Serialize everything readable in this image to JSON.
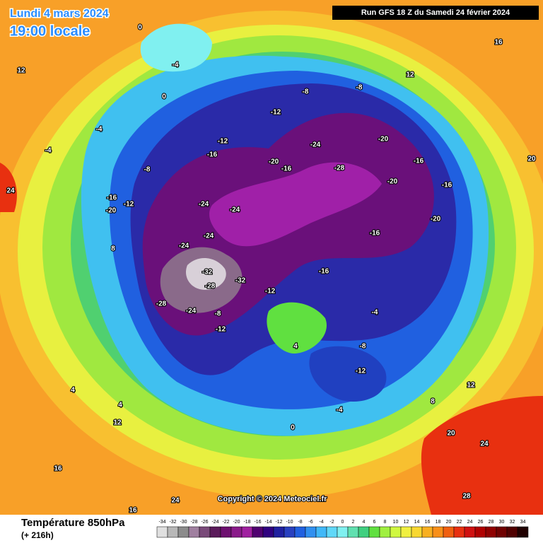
{
  "header": {
    "date": "Lundi 4 mars 2024",
    "time": "19:00 locale",
    "run": "Run GFS 18 Z du Samedi 24 février 2024"
  },
  "copyright": "Copyright © 2024 Meteociel.fr",
  "footer": {
    "title": "Température 850hPa",
    "lead": "(+ 216h)"
  },
  "contour_labels": [
    -4,
    0,
    -8,
    -8,
    -12,
    -20,
    -16,
    -24,
    -28,
    -20,
    -16,
    -20,
    -16,
    -20,
    -16,
    -24,
    -24,
    -24,
    -24,
    -32,
    -28,
    -32,
    -28,
    -24,
    -12,
    -8,
    -16,
    -20,
    -12,
    -12,
    -16,
    -8,
    -4,
    -4,
    -8,
    -12,
    4,
    4,
    12,
    16,
    20,
    24,
    28,
    24,
    16,
    8,
    12,
    16,
    20,
    24,
    12,
    0,
    -4,
    -16,
    -12,
    4,
    12,
    8,
    0,
    -4
  ],
  "scale": {
    "ticks": [
      -34,
      -32,
      -30,
      -28,
      -26,
      -24,
      -22,
      -20,
      -18,
      -16,
      -14,
      -12,
      -10,
      -8,
      -6,
      -4,
      -2,
      0,
      2,
      4,
      6,
      8,
      10,
      12,
      14,
      16,
      18,
      20,
      22,
      24,
      26,
      28,
      30,
      32,
      34
    ],
    "colors": [
      "#e0e0e0",
      "#b8b8b8",
      "#8c8c8c",
      "#a080a0",
      "#7a4a7a",
      "#5a1a5a",
      "#6e1070",
      "#8a1a8a",
      "#a020a0",
      "#500070",
      "#300080",
      "#2020a0",
      "#2840c0",
      "#2060e0",
      "#3090f0",
      "#40b8f8",
      "#60d8f8",
      "#80f0f0",
      "#60e0b0",
      "#40d080",
      "#60e040",
      "#a0f040",
      "#d0f840",
      "#f0f040",
      "#f8d830",
      "#f8b020",
      "#f89018",
      "#f06010",
      "#e83010",
      "#d01010",
      "#b00000",
      "#900000",
      "#700000",
      "#500000",
      "#200000"
    ]
  }
}
